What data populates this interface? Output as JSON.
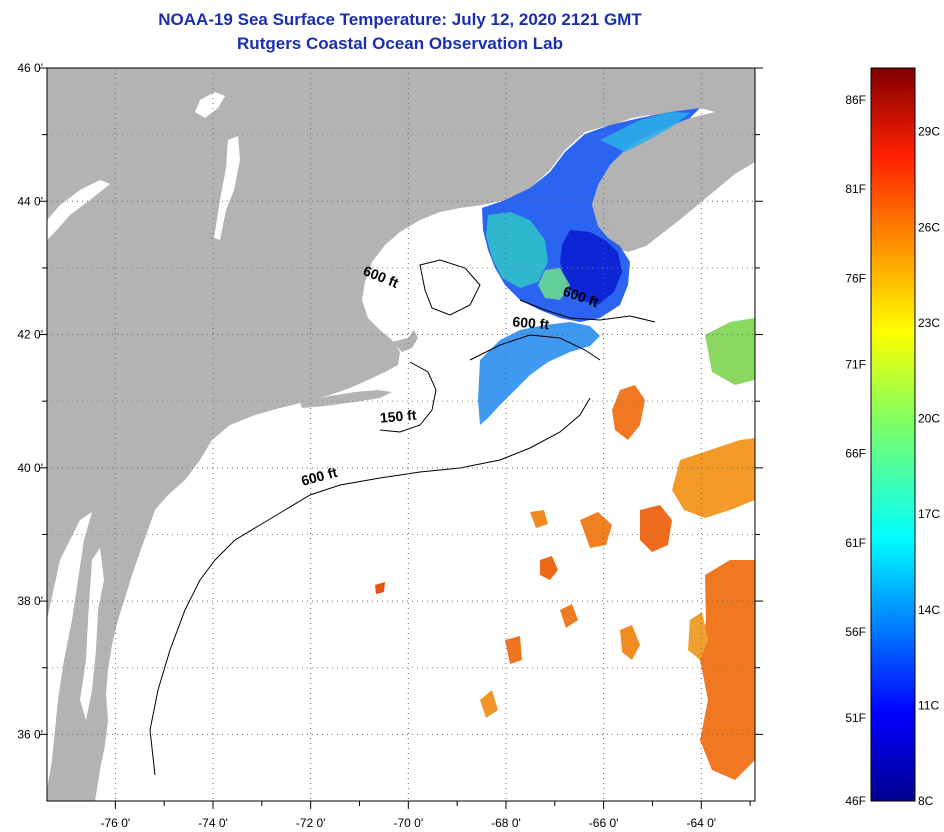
{
  "title": {
    "line1": "NOAA-19 Sea Surface Temperature:  July 12, 2020 2121 GMT",
    "line2": "Rutgers Coastal Ocean Observation Lab"
  },
  "map": {
    "lon_ticks": [
      {
        "value": -76,
        "label": "-76 0'"
      },
      {
        "value": -74,
        "label": "-74 0'"
      },
      {
        "value": -72,
        "label": "-72 0'"
      },
      {
        "value": -70,
        "label": "-70 0'"
      },
      {
        "value": -68,
        "label": "-68 0'"
      },
      {
        "value": -66,
        "label": "-66 0'"
      },
      {
        "value": -64,
        "label": "-64 0'"
      }
    ],
    "lat_ticks": [
      {
        "value": 46,
        "label": "46 0'"
      },
      {
        "value": 44,
        "label": "44 0'"
      },
      {
        "value": 42,
        "label": "42 0'"
      },
      {
        "value": 40,
        "label": "40 0'"
      },
      {
        "value": 38,
        "label": "38 0'"
      },
      {
        "value": 36,
        "label": "36 0'"
      }
    ],
    "isobath_labels": [
      {
        "text": "600 ft",
        "lon": -70.6,
        "lat": 42.8
      },
      {
        "text": "600 ft",
        "lon": -66.5,
        "lat": 42.5
      },
      {
        "text": "600 ft",
        "lon": -67.5,
        "lat": 42.1
      },
      {
        "text": "150 ft",
        "lon": -70.2,
        "lat": 40.7
      },
      {
        "text": "600 ft",
        "lon": -71.8,
        "lat": 39.8
      }
    ]
  },
  "colorbar": {
    "min_c": 8,
    "max_c": 31,
    "fahrenheit_labels": [
      {
        "label": "86F",
        "c": 30
      },
      {
        "label": "81F",
        "c": 27.2
      },
      {
        "label": "76F",
        "c": 24.4
      },
      {
        "label": "71F",
        "c": 21.7
      },
      {
        "label": "66F",
        "c": 18.9
      },
      {
        "label": "61F",
        "c": 16.1
      },
      {
        "label": "56F",
        "c": 13.3
      },
      {
        "label": "51F",
        "c": 10.6
      },
      {
        "label": "46F",
        "c": 8
      }
    ],
    "celsius_labels": [
      {
        "label": "29C",
        "c": 29
      },
      {
        "label": "26C",
        "c": 26
      },
      {
        "label": "23C",
        "c": 23
      },
      {
        "label": "20C",
        "c": 20
      },
      {
        "label": "17C",
        "c": 17
      },
      {
        "label": "14C",
        "c": 14
      },
      {
        "label": "11C",
        "c": 11
      },
      {
        "label": "8C",
        "c": 8
      }
    ]
  },
  "colors": {
    "land": "#b3b3b3",
    "ocean": "#ffffff",
    "title": "#1a2fb0"
  }
}
